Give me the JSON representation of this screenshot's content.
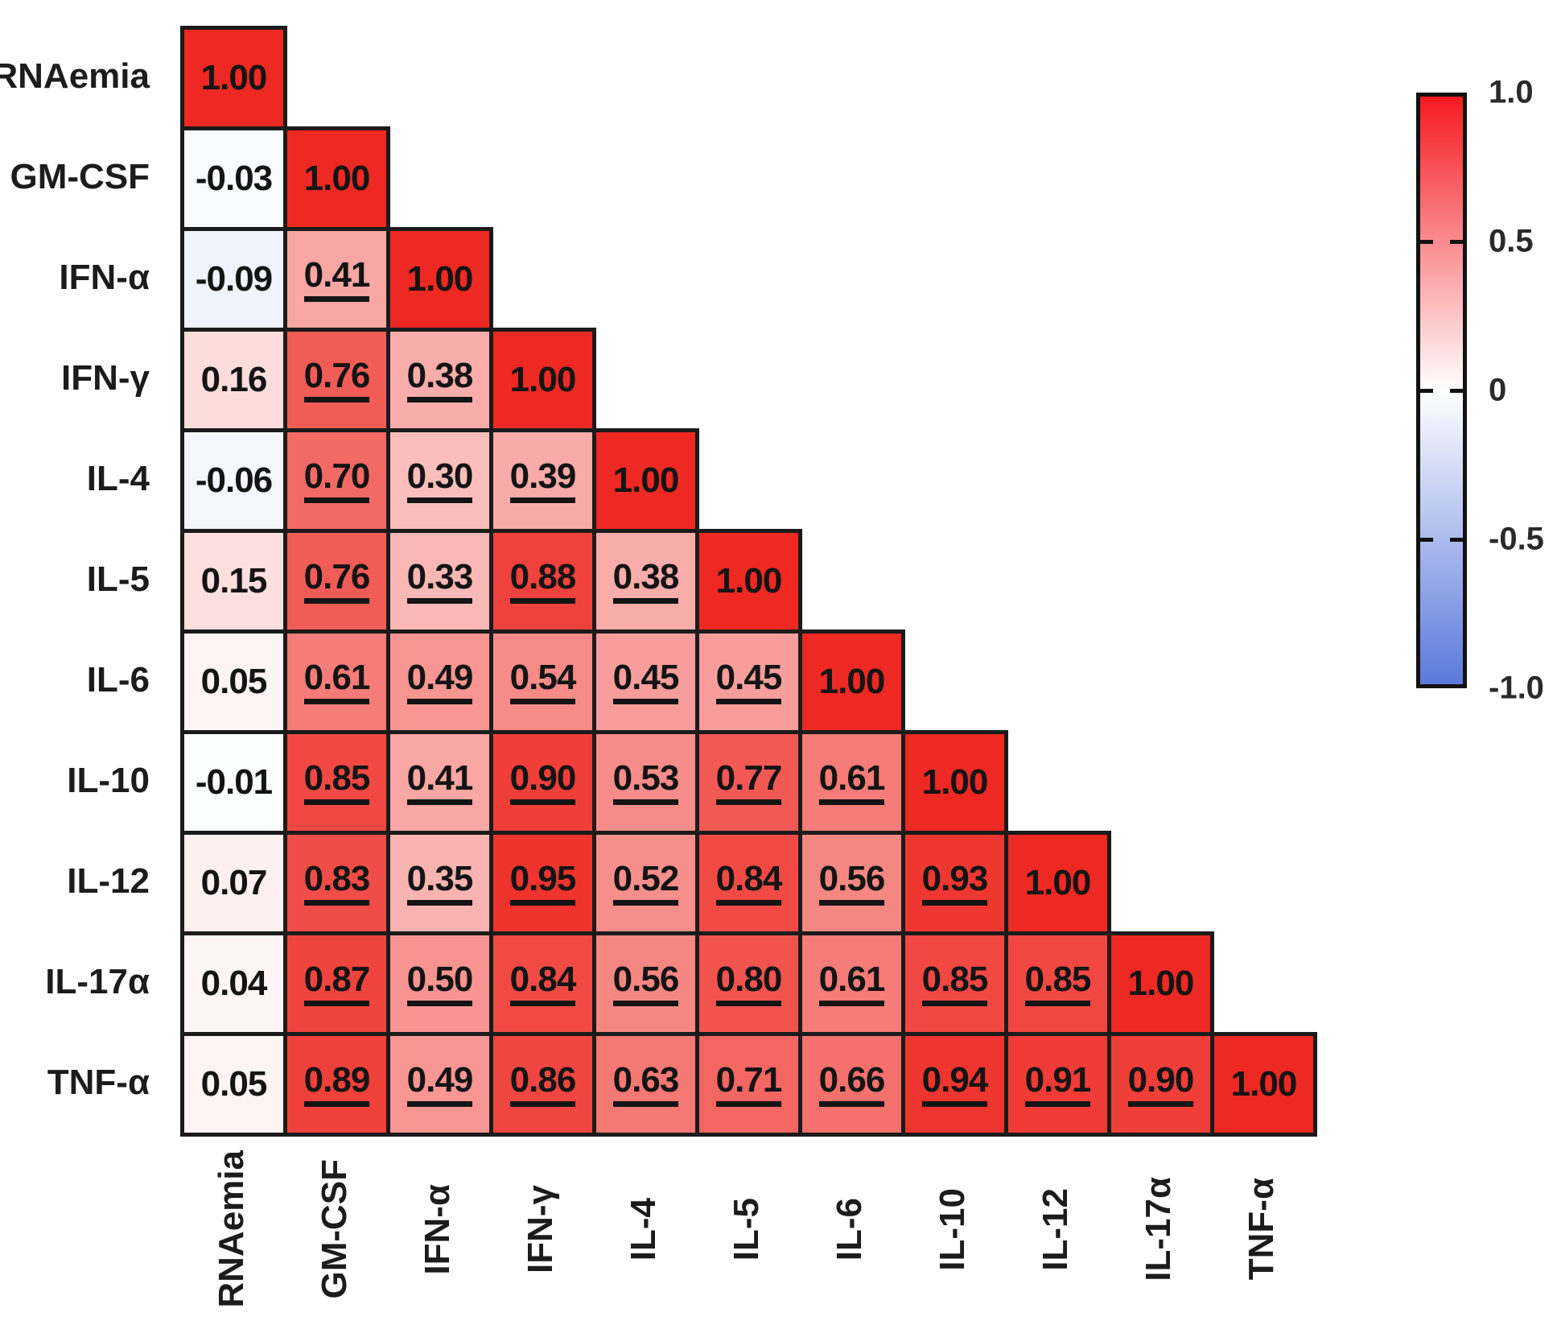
{
  "chart_data": {
    "type": "heatmap",
    "subtype": "lower-triangular correlation matrix",
    "variables": [
      "RNAemia",
      "GM-CSF",
      "IFN-α",
      "IFN-γ",
      "IL-4",
      "IL-5",
      "IL-6",
      "IL-10",
      "IL-12",
      "IL-17α",
      "TNF-α"
    ],
    "matrix_display": [
      [
        "1.00"
      ],
      [
        "-0.03",
        "1.00"
      ],
      [
        "-0.09",
        "0.41",
        "1.00"
      ],
      [
        "0.16",
        "0.76",
        "0.38",
        "1.00"
      ],
      [
        "-0.06",
        "0.70",
        "0.30",
        "0.39",
        "1.00"
      ],
      [
        "0.15",
        "0.76",
        "0.33",
        "0.88",
        "0.38",
        "1.00"
      ],
      [
        "0.05",
        "0.61",
        "0.49",
        "0.54",
        "0.45",
        "0.45",
        "1.00"
      ],
      [
        "-0.01",
        "0.85",
        "0.41",
        "0.90",
        "0.53",
        "0.77",
        "0.61",
        "1.00"
      ],
      [
        "0.07",
        "0.83",
        "0.35",
        "0.95",
        "0.52",
        "0.84",
        "0.56",
        "0.93",
        "1.00"
      ],
      [
        "0.04",
        "0.87",
        "0.50",
        "0.84",
        "0.56",
        "0.80",
        "0.61",
        "0.85",
        "0.85",
        "1.00"
      ],
      [
        "0.05",
        "0.89",
        "0.49",
        "0.86",
        "0.63",
        "0.71",
        "0.66",
        "0.94",
        "0.91",
        "0.90",
        "1.00"
      ]
    ],
    "underlined": [
      [
        0
      ],
      [
        0,
        0
      ],
      [
        0,
        1,
        0
      ],
      [
        0,
        1,
        1,
        0
      ],
      [
        0,
        1,
        1,
        1,
        0
      ],
      [
        0,
        1,
        1,
        1,
        1,
        0
      ],
      [
        0,
        1,
        1,
        1,
        1,
        1,
        0
      ],
      [
        0,
        1,
        1,
        1,
        1,
        1,
        1,
        0
      ],
      [
        0,
        1,
        1,
        1,
        1,
        1,
        1,
        1,
        0
      ],
      [
        0,
        1,
        1,
        1,
        1,
        1,
        1,
        1,
        1,
        0
      ],
      [
        0,
        1,
        1,
        1,
        1,
        1,
        1,
        1,
        1,
        1,
        0
      ]
    ],
    "value_range": [
      -1,
      1
    ],
    "colorbar": {
      "tick_labels": [
        "1.0",
        "0.5",
        "0",
        "-0.5",
        "-1.0"
      ],
      "top_color": "#f51a21",
      "mid_color": "#ffffff",
      "bottom_color": "#5b79dc"
    },
    "colors": {
      "positive_max": "#ee2822",
      "zero": "#ffffff",
      "negative_max": "#5577dd",
      "grid_line": "#1b1b1b"
    },
    "legend_position": "right",
    "title": "",
    "xlabel": "",
    "ylabel": ""
  },
  "layout_note": "x and y axes share the same variable list; diagonal and first-column values plain, all other values bold underlined"
}
